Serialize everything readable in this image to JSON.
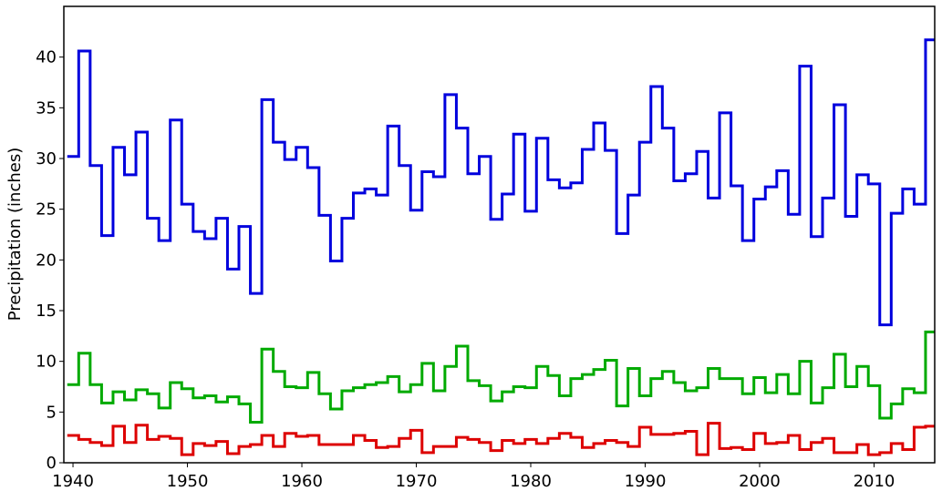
{
  "chart_data": {
    "type": "step",
    "y_label": "Precipitation (inches)",
    "x": [
      1940,
      1941,
      1942,
      1943,
      1944,
      1945,
      1946,
      1947,
      1948,
      1949,
      1950,
      1951,
      1952,
      1953,
      1954,
      1955,
      1956,
      1957,
      1958,
      1959,
      1960,
      1961,
      1962,
      1963,
      1964,
      1965,
      1966,
      1967,
      1968,
      1969,
      1970,
      1971,
      1972,
      1973,
      1974,
      1975,
      1976,
      1977,
      1978,
      1979,
      1980,
      1981,
      1982,
      1983,
      1984,
      1985,
      1986,
      1987,
      1988,
      1989,
      1990,
      1991,
      1992,
      1993,
      1994,
      1995,
      1996,
      1997,
      1998,
      1999,
      2000,
      2001,
      2002,
      2003,
      2004,
      2005,
      2006,
      2007,
      2008,
      2009,
      2010,
      2011,
      2012,
      2013,
      2014,
      2015
    ],
    "series": [
      {
        "color": "#0000dd",
        "values": [
          30.2,
          40.6,
          29.3,
          22.4,
          31.1,
          28.4,
          32.6,
          24.1,
          21.9,
          33.8,
          25.5,
          22.8,
          22.1,
          24.1,
          19.1,
          23.3,
          16.7,
          35.8,
          31.6,
          29.9,
          31.1,
          29.1,
          24.4,
          19.9,
          24.1,
          26.6,
          27.0,
          26.4,
          33.2,
          29.3,
          24.9,
          28.7,
          28.2,
          36.3,
          33.0,
          28.5,
          30.2,
          24.0,
          26.5,
          32.4,
          24.8,
          32.0,
          27.9,
          27.1,
          27.6,
          30.9,
          33.5,
          30.8,
          22.6,
          26.4,
          31.6,
          37.1,
          33.0,
          27.8,
          28.5,
          30.7,
          26.1,
          34.5,
          27.3,
          21.9,
          26.0,
          27.2,
          28.8,
          24.5,
          39.1,
          22.3,
          26.1,
          35.3,
          24.3,
          28.4,
          27.5,
          13.6,
          24.6,
          27.0,
          25.5,
          41.7
        ]
      },
      {
        "color": "#00aa00",
        "values": [
          7.7,
          10.8,
          7.7,
          5.9,
          7.0,
          6.2,
          7.2,
          6.8,
          5.4,
          7.9,
          7.3,
          6.4,
          6.6,
          6.0,
          6.5,
          5.8,
          4.0,
          11.2,
          9.0,
          7.5,
          7.4,
          8.9,
          6.8,
          5.3,
          7.1,
          7.4,
          7.7,
          7.9,
          8.5,
          7.0,
          7.7,
          9.8,
          7.1,
          9.5,
          11.5,
          8.1,
          7.6,
          6.1,
          7.0,
          7.5,
          7.4,
          9.5,
          8.6,
          6.6,
          8.3,
          8.7,
          9.2,
          10.1,
          5.6,
          9.3,
          6.6,
          8.3,
          9.0,
          7.9,
          7.1,
          7.4,
          9.3,
          8.3,
          8.3,
          6.8,
          8.4,
          6.9,
          8.7,
          6.8,
          10.0,
          5.9,
          7.4,
          10.7,
          7.5,
          9.5,
          7.6,
          4.4,
          5.8,
          7.3,
          6.9,
          12.9
        ]
      },
      {
        "color": "#dd0000",
        "values": [
          2.7,
          2.3,
          2.0,
          1.7,
          3.6,
          2.0,
          3.7,
          2.3,
          2.6,
          2.4,
          0.8,
          1.9,
          1.7,
          2.1,
          0.9,
          1.6,
          1.8,
          2.7,
          1.6,
          2.9,
          2.6,
          2.7,
          1.8,
          1.8,
          1.8,
          2.7,
          2.2,
          1.5,
          1.6,
          2.4,
          3.2,
          1.0,
          1.6,
          1.6,
          2.5,
          2.3,
          2.0,
          1.2,
          2.2,
          1.9,
          2.3,
          1.9,
          2.4,
          2.9,
          2.5,
          1.5,
          1.9,
          2.2,
          2.0,
          1.6,
          3.5,
          2.8,
          2.8,
          2.9,
          3.1,
          0.8,
          3.9,
          1.4,
          1.5,
          1.3,
          2.9,
          1.9,
          2.0,
          2.7,
          1.3,
          2.0,
          2.4,
          1.0,
          1.0,
          1.8,
          0.8,
          1.0,
          1.9,
          1.3,
          3.5,
          3.6
        ]
      }
    ],
    "xlim": [
      1939.2,
      2015.3
    ],
    "ylim": [
      0,
      45
    ],
    "xticks": [
      1940,
      1950,
      1960,
      1970,
      1980,
      1990,
      2000,
      2010
    ],
    "yticks": [
      0,
      5,
      10,
      15,
      20,
      25,
      30,
      35,
      40
    ]
  }
}
